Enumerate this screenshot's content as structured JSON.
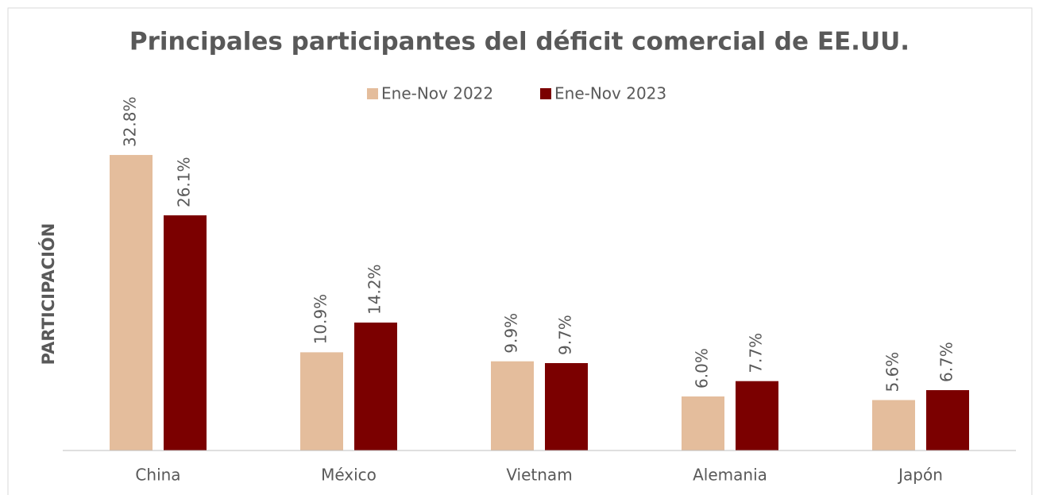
{
  "chart_data": {
    "type": "bar",
    "title": "Principales participantes del déficit comercial de EE.UU.",
    "y_label": "PARTICIPACIÓN",
    "categories": [
      "China",
      "México",
      "Vietnam",
      "Alemania",
      "Japón"
    ],
    "series": [
      {
        "name": "Ene-Nov 2022",
        "color": "#e4bd9c",
        "values": [
          32.8,
          10.9,
          9.9,
          6.0,
          5.6
        ],
        "value_labels": [
          "32.8%",
          "10.9%",
          "9.9%",
          "6.0%",
          "5.6%"
        ]
      },
      {
        "name": "Ene-Nov 2023",
        "color": "#7b0000",
        "values": [
          26.1,
          14.2,
          9.7,
          7.7,
          6.7
        ],
        "value_labels": [
          "26.1%",
          "14.2%",
          "9.7%",
          "7.7%",
          "6.7%"
        ]
      }
    ],
    "ylim": [
      0,
      40
    ],
    "legend": "top"
  }
}
